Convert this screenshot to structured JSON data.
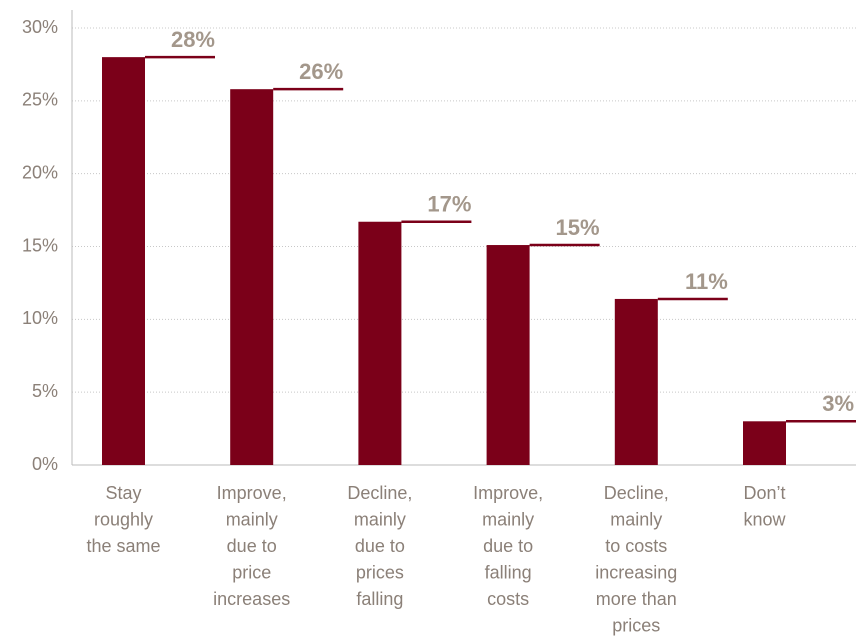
{
  "chart_data": {
    "type": "bar",
    "categories": [
      [
        "Stay",
        "roughly",
        "the same"
      ],
      [
        "Improve,",
        "mainly",
        "due to",
        "price",
        "increases"
      ],
      [
        "Decline,",
        "mainly",
        "due to",
        "prices",
        "falling"
      ],
      [
        "Improve,",
        "mainly",
        "due to",
        "falling",
        "costs"
      ],
      [
        "Decline,",
        "mainly",
        "to costs",
        "increasing",
        "more than",
        "prices"
      ],
      [
        "Don’t",
        "know"
      ]
    ],
    "values": [
      28,
      25.8,
      16.7,
      15.1,
      11.4,
      3.0
    ],
    "value_labels": [
      "28%",
      "26%",
      "17%",
      "15%",
      "11%",
      "3%"
    ],
    "color": "#7b0019",
    "ylim": [
      0,
      30
    ],
    "yticks": [
      {
        "value": 0,
        "label": "0%"
      },
      {
        "value": 5,
        "label": "5%"
      },
      {
        "value": 10,
        "label": "10%"
      },
      {
        "value": 15,
        "label": "15%"
      },
      {
        "value": 20,
        "label": "20%"
      },
      {
        "value": 25,
        "label": "25%"
      },
      {
        "value": 30,
        "label": "30%"
      }
    ],
    "grid": true
  }
}
